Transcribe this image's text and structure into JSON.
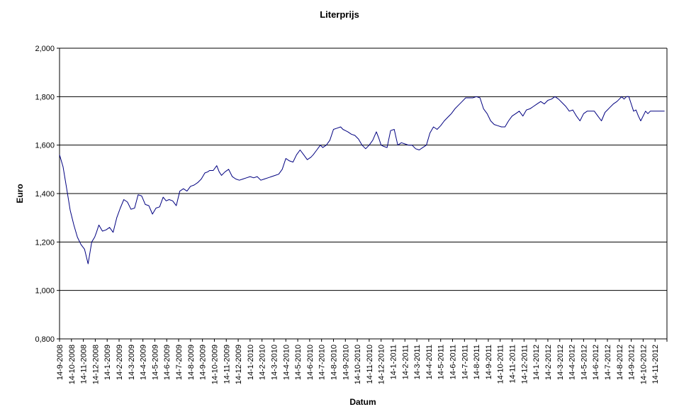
{
  "chart_data": {
    "type": "line",
    "title": "Literprijs",
    "xlabel": "Datum",
    "ylabel": "Euro",
    "ylim": [
      0.8,
      2.0
    ],
    "y_ticks": [
      "0,800",
      "1,000",
      "1,200",
      "1,400",
      "1,600",
      "1,800",
      "2,000"
    ],
    "x_ticks": [
      "14-9-2008",
      "14-10-2008",
      "14-11-2008",
      "14-12-2008",
      "14-1-2009",
      "14-2-2009",
      "14-3-2009",
      "14-4-2009",
      "14-5-2009",
      "14-6-2009",
      "14-7-2009",
      "14-8-2009",
      "14-9-2009",
      "14-10-2009",
      "14-11-2009",
      "14-12-2009",
      "14-1-2010",
      "14-2-2010",
      "14-3-2010",
      "14-4-2010",
      "14-5-2010",
      "14-6-2010",
      "14-7-2010",
      "14-8-2010",
      "14-9-2010",
      "14-10-2010",
      "14-11-2010",
      "14-12-2010",
      "14-1-2011",
      "14-2-2011",
      "14-3-2011",
      "14-4-2011",
      "14-5-2011",
      "14-6-2011",
      "14-7-2011",
      "14-8-2011",
      "14-9-2011",
      "14-10-2011",
      "14-11-2011",
      "14-12-2011",
      "14-1-2012",
      "14-2-2012",
      "14-3-2012",
      "14-4-2012",
      "14-5-2012",
      "14-6-2012",
      "14-7-2012",
      "14-8-2012",
      "14-9-2012",
      "14-10-2012",
      "14-11-2012"
    ],
    "grid": true,
    "legend": "none",
    "line_color": "#000080",
    "series": [
      {
        "x": [
          0,
          0.3,
          0.6,
          0.9,
          1.2,
          1.5,
          1.8,
          2.1,
          2.4,
          2.7,
          2.95,
          3.1,
          3.3,
          3.6,
          3.9,
          4.2,
          4.5,
          4.8,
          5.1,
          5.4,
          5.7,
          6.0,
          6.3,
          6.6,
          6.9,
          7.2,
          7.5,
          7.8,
          8.1,
          8.4,
          8.7,
          8.95,
          9.2,
          9.5,
          9.8,
          10.1,
          10.4,
          10.7,
          11.0,
          11.3,
          11.6,
          11.9,
          12.2,
          12.45,
          12.6,
          12.9,
          13.2,
          13.4,
          13.6,
          13.9,
          14.2,
          14.5,
          14.8,
          15.1,
          15.4,
          15.7,
          16.0,
          16.3,
          16.6,
          16.9,
          17.2,
          17.5,
          17.8,
          18.1,
          18.4,
          18.7,
          19.0,
          19.3,
          19.6,
          19.9,
          20.2,
          20.5,
          20.8,
          21.1,
          21.3,
          21.6,
          21.9,
          22.1,
          22.4,
          22.7,
          23.0,
          23.3,
          23.6,
          23.8,
          24.0,
          24.2,
          24.5,
          24.8,
          25.1,
          25.4,
          25.7,
          26.0,
          26.3,
          26.6,
          26.8,
          27.0,
          27.2,
          27.5,
          27.8,
          28.1,
          28.4,
          28.7,
          29.0,
          29.3,
          29.6,
          29.9,
          30.2,
          30.5,
          30.8,
          31.1,
          31.4,
          31.7,
          32.0,
          32.3,
          32.6,
          32.9,
          33.2,
          33.5,
          33.8,
          34.1,
          34.4,
          34.7,
          35.0,
          35.3,
          35.6,
          35.9,
          36.2,
          36.5,
          36.8,
          37.1,
          37.4,
          37.7,
          38.0,
          38.3,
          38.6,
          38.9,
          39.2,
          39.5,
          39.8,
          40.1,
          40.4,
          40.7,
          41.0,
          41.3,
          41.6,
          41.9,
          42.2,
          42.5,
          42.8,
          43.1,
          43.4,
          43.7,
          44.0,
          44.3,
          44.6,
          44.9,
          45.2,
          45.5,
          45.8,
          46.0,
          46.2,
          46.5,
          46.8,
          47.0,
          47.2,
          47.4,
          47.6,
          47.8,
          48.0,
          48.2,
          48.4,
          48.6,
          48.8,
          49.0,
          49.2,
          49.4,
          49.6,
          49.8,
          50.0,
          50.2,
          50.4,
          50.6,
          50.8
        ],
        "y": [
          1.56,
          1.51,
          1.42,
          1.33,
          1.27,
          1.22,
          1.19,
          1.17,
          1.11,
          1.2,
          1.22,
          1.24,
          1.27,
          1.245,
          1.25,
          1.26,
          1.24,
          1.3,
          1.34,
          1.375,
          1.365,
          1.335,
          1.34,
          1.395,
          1.39,
          1.355,
          1.35,
          1.315,
          1.34,
          1.345,
          1.385,
          1.37,
          1.375,
          1.37,
          1.35,
          1.41,
          1.42,
          1.41,
          1.43,
          1.435,
          1.445,
          1.46,
          1.485,
          1.49,
          1.495,
          1.495,
          1.515,
          1.49,
          1.475,
          1.49,
          1.5,
          1.47,
          1.46,
          1.455,
          1.46,
          1.465,
          1.47,
          1.465,
          1.47,
          1.455,
          1.46,
          1.465,
          1.47,
          1.475,
          1.48,
          1.5,
          1.545,
          1.535,
          1.53,
          1.56,
          1.58,
          1.56,
          1.54,
          1.55,
          1.56,
          1.58,
          1.6,
          1.59,
          1.6,
          1.62,
          1.665,
          1.67,
          1.675,
          1.665,
          1.66,
          1.655,
          1.645,
          1.64,
          1.625,
          1.6,
          1.585,
          1.6,
          1.62,
          1.655,
          1.63,
          1.6,
          1.595,
          1.59,
          1.66,
          1.665,
          1.6,
          1.61,
          1.605,
          1.6,
          1.6,
          1.585,
          1.58,
          1.59,
          1.6,
          1.65,
          1.675,
          1.665,
          1.68,
          1.7,
          1.715,
          1.73,
          1.75,
          1.765,
          1.78,
          1.795,
          1.795,
          1.795,
          1.8,
          1.795,
          1.75,
          1.73,
          1.7,
          1.685,
          1.68,
          1.675,
          1.675,
          1.7,
          1.72,
          1.73,
          1.74,
          1.72,
          1.745,
          1.75,
          1.76,
          1.77,
          1.78,
          1.77,
          1.785,
          1.79,
          1.8,
          1.79,
          1.775,
          1.76,
          1.74,
          1.745,
          1.72,
          1.7,
          1.73,
          1.74,
          1.74,
          1.74,
          1.72,
          1.7,
          1.735,
          1.745,
          1.755,
          1.77,
          1.78,
          1.79,
          1.8,
          1.79,
          1.8,
          1.8,
          1.77,
          1.74,
          1.745,
          1.72,
          1.7,
          1.72,
          1.74,
          1.73,
          1.74,
          1.74,
          1.74,
          1.74,
          1.74,
          1.74,
          1.74
        ]
      }
    ]
  }
}
